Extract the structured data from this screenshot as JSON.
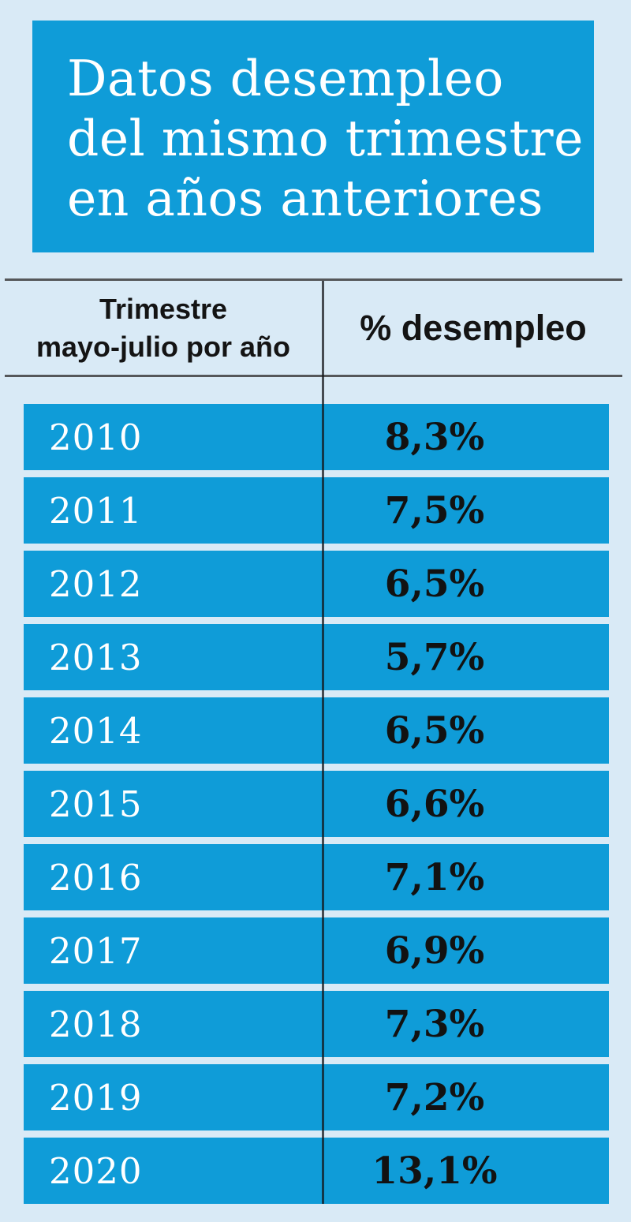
{
  "page": {
    "background_color": "#d9eaf6",
    "accent_blue": "#0f9cd8",
    "rule_color": "#55575a"
  },
  "title": {
    "text": "Datos desempleo\ndel mismo trimestre\nen años anteriores",
    "text_color": "#ffffff",
    "background": "#0f9cd8"
  },
  "table": {
    "header": {
      "left_label": "Trimestre\nmayo-julio por año",
      "right_label": "% desempleo"
    },
    "rows": [
      {
        "year": "2010",
        "value": "8,3%"
      },
      {
        "year": "2011",
        "value": "7,5%"
      },
      {
        "year": "2012",
        "value": "6,5%"
      },
      {
        "year": "2013",
        "value": "5,7%"
      },
      {
        "year": "2014",
        "value": "6,5%"
      },
      {
        "year": "2015",
        "value": "6,6%"
      },
      {
        "year": "2016",
        "value": "7,1%"
      },
      {
        "year": "2017",
        "value": "6,9%"
      },
      {
        "year": "2018",
        "value": "7,3%"
      },
      {
        "year": "2019",
        "value": "7,2%"
      },
      {
        "year": "2020",
        "value": "13,1%"
      }
    ],
    "row_background": "#0f9cd8",
    "year_text_color": "#ffffff",
    "value_text_color": "#121212"
  },
  "chart_data": {
    "type": "table",
    "title": "Datos desempleo del mismo trimestre en años anteriores",
    "columns": [
      "Trimestre mayo-julio por año",
      "% desempleo"
    ],
    "categories": [
      "2010",
      "2011",
      "2012",
      "2013",
      "2014",
      "2015",
      "2016",
      "2017",
      "2018",
      "2019",
      "2020"
    ],
    "values": [
      8.3,
      7.5,
      6.5,
      5.7,
      6.5,
      6.6,
      7.1,
      6.9,
      7.3,
      7.2,
      13.1
    ],
    "value_labels": [
      "8,3%",
      "7,5%",
      "6,5%",
      "5,7%",
      "6,5%",
      "6,6%",
      "7,1%",
      "6,9%",
      "7,3%",
      "7,2%",
      "13,1%"
    ],
    "notes": "Unemployment % for the May–July quarter of each year"
  }
}
